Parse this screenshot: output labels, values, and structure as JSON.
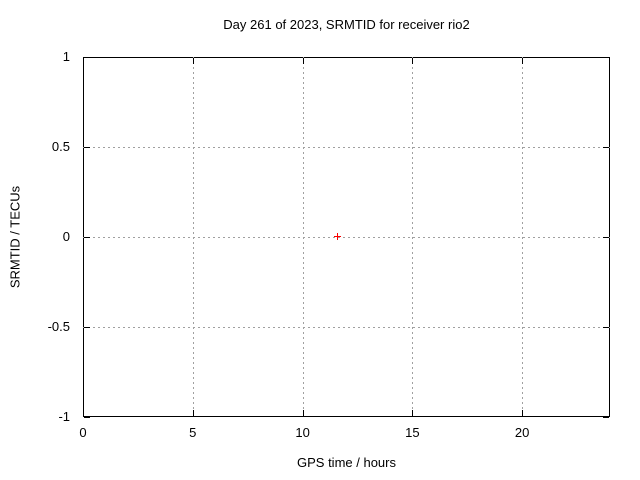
{
  "colors": {
    "background": "#ffffff",
    "axis": "#000000",
    "grid": "#a0a0a0",
    "marker": "#ff0000"
  },
  "chart_data": {
    "type": "scatter",
    "title": "Day 261 of 2023, SRMTID for receiver rio2",
    "xlabel": "GPS time / hours",
    "ylabel": "SRMTID / TECUs",
    "xlim": [
      0,
      24
    ],
    "ylim": [
      -1,
      1
    ],
    "grid": true,
    "legend_position": "none",
    "xticks": [
      {
        "v": 0,
        "label": "0"
      },
      {
        "v": 5,
        "label": "5"
      },
      {
        "v": 10,
        "label": "10"
      },
      {
        "v": 15,
        "label": "15"
      },
      {
        "v": 20,
        "label": "20"
      }
    ],
    "yticks": [
      {
        "v": -1,
        "label": "-1"
      },
      {
        "v": -0.5,
        "label": "-0.5"
      },
      {
        "v": 0,
        "label": "0"
      },
      {
        "v": 0.5,
        "label": "0.5"
      },
      {
        "v": 1,
        "label": "1"
      }
    ],
    "series": [
      {
        "name": "SRMTID",
        "marker": "plus",
        "color": "#ff0000",
        "points": [
          {
            "x": 11.6,
            "y": 0
          }
        ]
      }
    ]
  }
}
